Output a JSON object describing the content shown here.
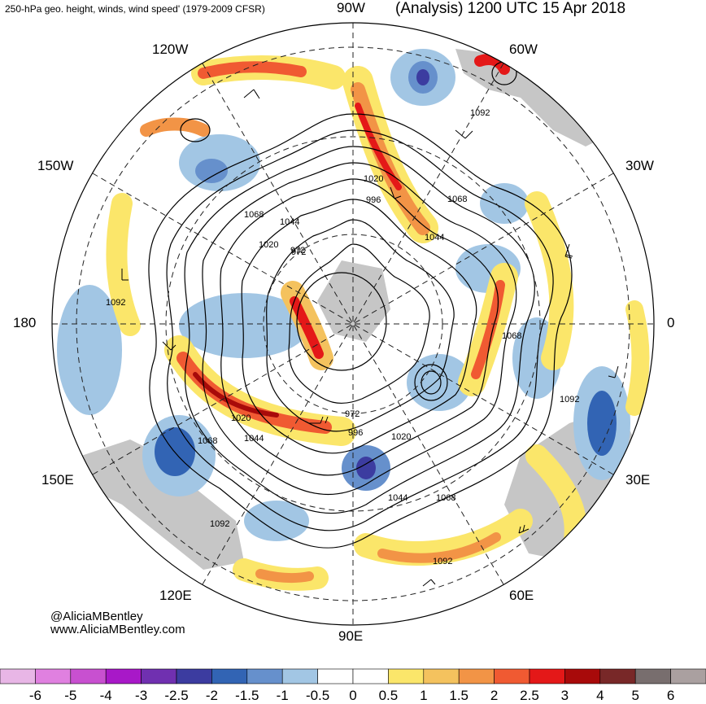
{
  "header": {
    "left_title": "250-hPa geo. height, winds, wind speed' (1979-2009 CFSR)",
    "right_title": "(Analysis) 1200 UTC 15 Apr 2018"
  },
  "longitude_labels": {
    "lon_90w": "90W",
    "lon_60w": "60W",
    "lon_30w": "30W",
    "lon_0": "0",
    "lon_30e": "30E",
    "lon_60e": "60E",
    "lon_90e": "90E",
    "lon_120e": "120E",
    "lon_150e": "150E",
    "lon_180": "180",
    "lon_150w": "150W",
    "lon_120w": "120W"
  },
  "contour_labels": [
    "1092",
    "1068",
    "1044",
    "1020",
    "996",
    "972",
    "1068",
    "1044",
    "1020",
    "972",
    "1092",
    "1020",
    "1044",
    "1068",
    "1092",
    "972",
    "996",
    "1020",
    "1044",
    "1068",
    "1092",
    "1068",
    "1092"
  ],
  "credit": {
    "handle": "@AliciaMBentley",
    "website": "www.AliciaMBentley.com"
  },
  "colorbar": {
    "ticks": [
      "-6",
      "-5",
      "-4",
      "-3",
      "-2.5",
      "-2",
      "-1.5",
      "-1",
      "-0.5",
      "0",
      "0.5",
      "1",
      "1.5",
      "2",
      "2.5",
      "3",
      "4",
      "5",
      "6"
    ],
    "colors": [
      "#e8b6e6",
      "#e080e0",
      "#c850d0",
      "#a818c8",
      "#7030b0",
      "#3c3ca0",
      "#3264b4",
      "#6690cc",
      "#a2c6e4",
      "#ffffff",
      "#ffffff",
      "#fbe66a",
      "#f4c25e",
      "#f29446",
      "#f05a32",
      "#e41818",
      "#a80a0a",
      "#782828",
      "#786e6e",
      "#aaa0a0"
    ]
  }
}
